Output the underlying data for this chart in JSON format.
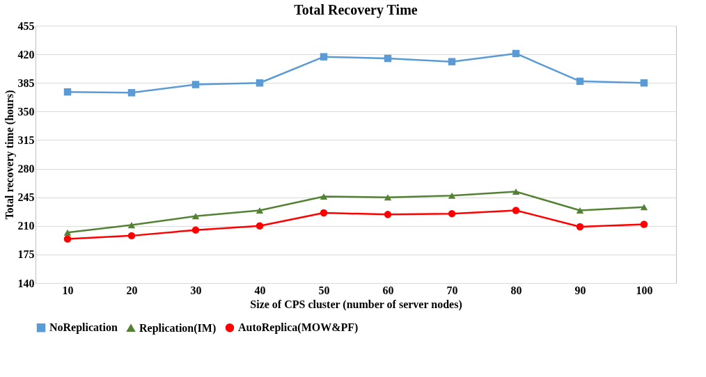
{
  "chart_data": {
    "type": "line",
    "title": "Total Recovery Time",
    "xlabel": "Size of CPS cluster (number of server nodes)",
    "ylabel": "Total recovery time (hours)",
    "categories": [
      "10",
      "20",
      "30",
      "40",
      "50",
      "60",
      "70",
      "80",
      "90",
      "100"
    ],
    "series": [
      {
        "name": "NoReplication",
        "color": "#5b9bd5",
        "marker": "square",
        "values": [
          374,
          373,
          383,
          385,
          417,
          415,
          411,
          421,
          387,
          385
        ]
      },
      {
        "name": "Replication(IM)",
        "color": "#548235",
        "marker": "triangle",
        "values": [
          202,
          211,
          222,
          229,
          246,
          245,
          247,
          252,
          229,
          233
        ]
      },
      {
        "name": "AutoReplica(MOW&PF)",
        "color": "#ff0000",
        "marker": "circle",
        "values": [
          194,
          198,
          205,
          210,
          226,
          224,
          225,
          229,
          209,
          212
        ]
      }
    ],
    "ylim": [
      140,
      455
    ],
    "yticks": [
      140,
      175,
      210,
      245,
      280,
      315,
      350,
      385,
      420,
      455
    ],
    "grid": "y",
    "legend": "bottom",
    "line_style": "solid"
  }
}
